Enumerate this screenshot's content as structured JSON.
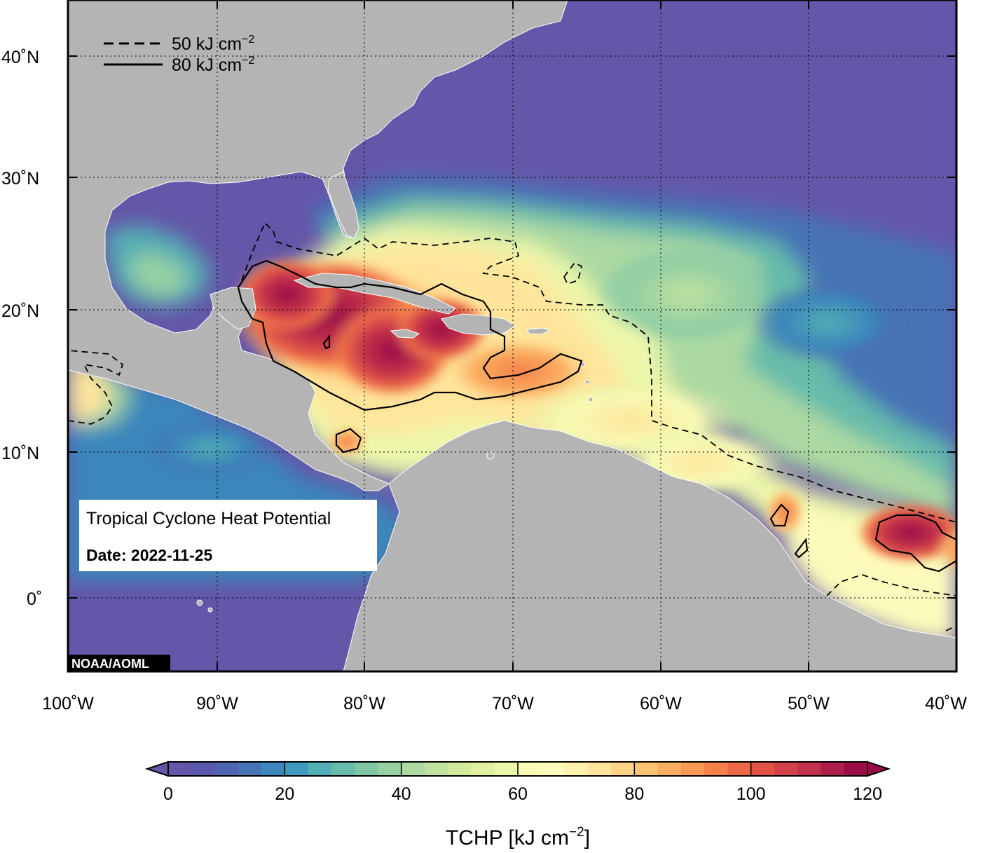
{
  "map": {
    "title_box": {
      "title": "Tropical Cyclone Heat Potential",
      "date_label": "Date: 2022-11-25"
    },
    "credit": "NOAA/AOML",
    "legend": {
      "dashed_label": "50 kJ cm",
      "solid_label": "80 kJ cm",
      "unit_exponent": "−2"
    },
    "lat_ticks": [
      "40˚N",
      "30˚N",
      "20˚N",
      "10˚N",
      "0˚"
    ],
    "lon_ticks": [
      "100˚W",
      "90˚W",
      "80˚W",
      "70˚W",
      "60˚W",
      "50˚W",
      "40˚W"
    ],
    "extent": {
      "lon_min": -100,
      "lon_max": -40,
      "lat_min": -5,
      "lat_max": 45
    }
  },
  "colorbar": {
    "ticks": [
      "0",
      "20",
      "40",
      "60",
      "80",
      "100",
      "120"
    ],
    "label_main": "TCHP [kJ cm",
    "label_exp": "−2",
    "label_close": "]",
    "min": 0,
    "max": 120,
    "colors": [
      "#6456a8",
      "#5a58ad",
      "#4f65b1",
      "#4673b5",
      "#3b86bb",
      "#3f9bbd",
      "#52adb4",
      "#66bbaa",
      "#7fc7a4",
      "#96d0a3",
      "#acd9a2",
      "#c0e29f",
      "#d2ea9f",
      "#e1f1a2",
      "#edf7aa",
      "#f7fbb5",
      "#fdfbbc",
      "#fef2ad",
      "#fee59b",
      "#fed587",
      "#fdc473",
      "#fcaf62",
      "#f99955",
      "#f4804a",
      "#ec6846",
      "#e05346",
      "#d24149",
      "#c2304b",
      "#ad1e4b",
      "#9a0e47"
    ]
  }
}
